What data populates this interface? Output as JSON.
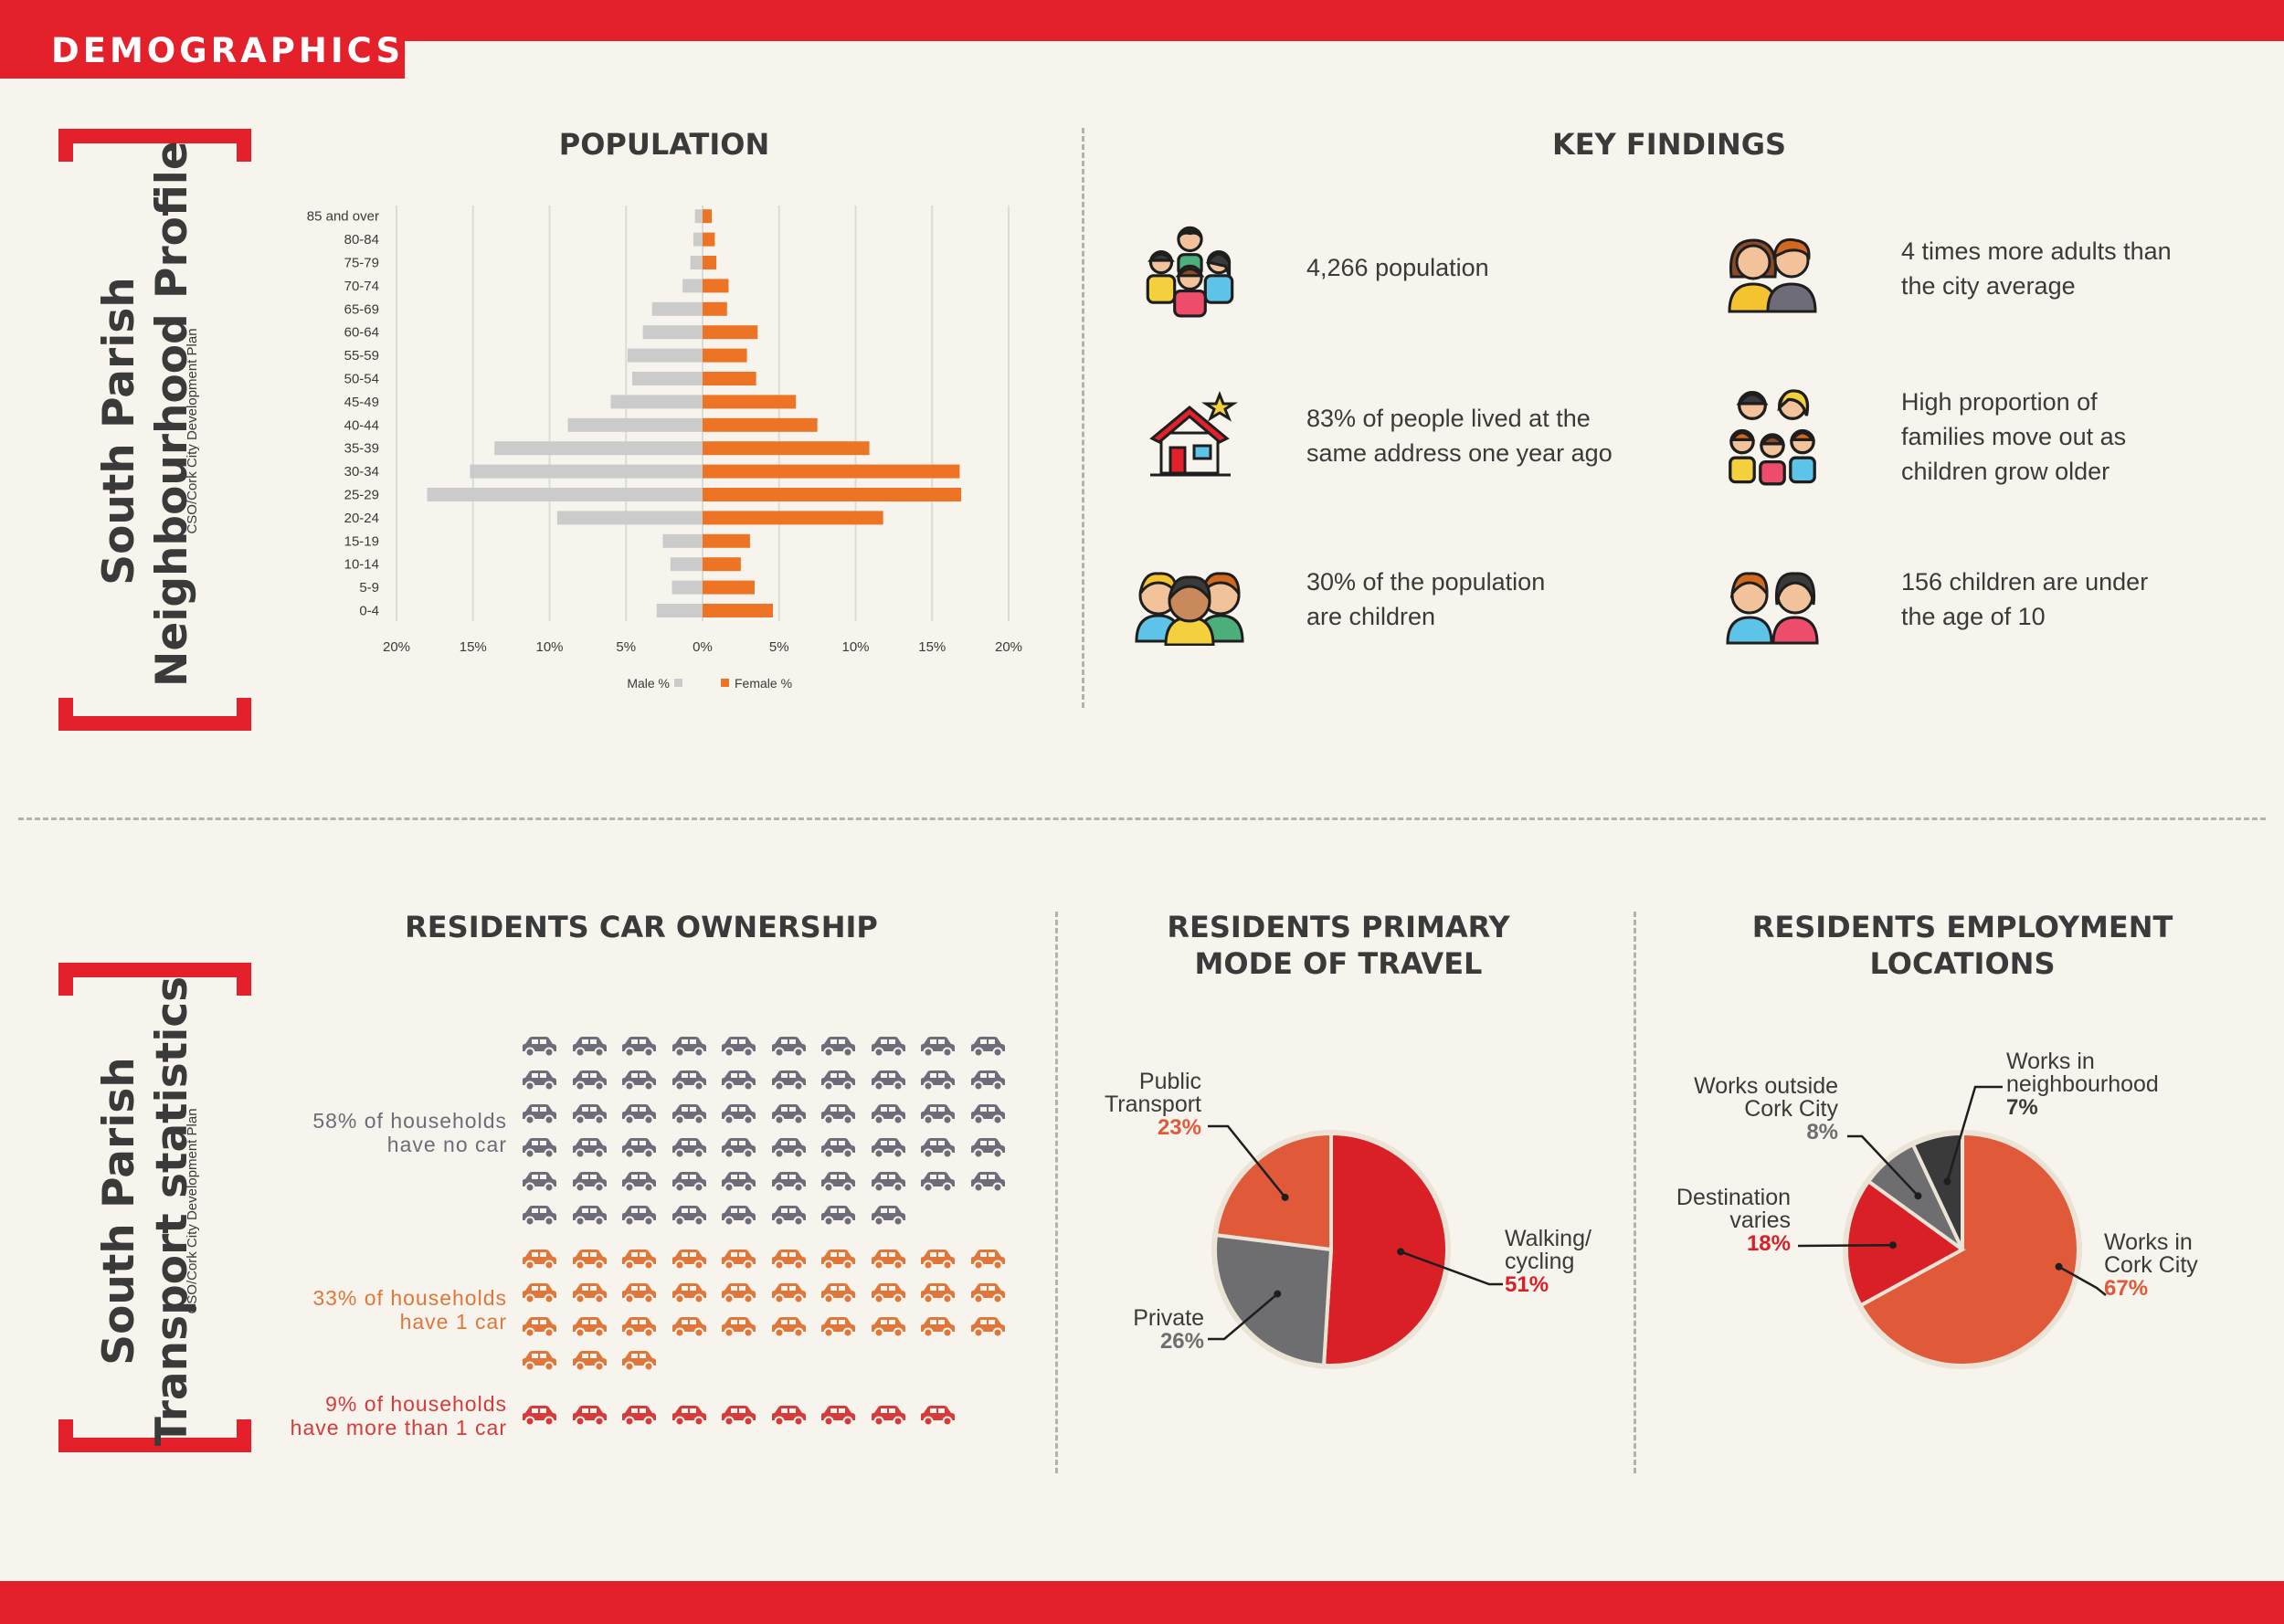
{
  "header": {
    "tag": "DEMOGRAPHICS"
  },
  "colors": {
    "accent": "#e4202b",
    "male": "#cbcbcb",
    "female": "#ee7425",
    "no_car": "#6d6c78",
    "one_car": "#e1763a",
    "multi_car": "#d63a3a",
    "pie_red": "#d92027",
    "pie_orange": "#e05a3a",
    "pie_grey": "#6e6e70",
    "pie_dark": "#3a3a3a"
  },
  "profile": {
    "title_line1": "South Parish",
    "title_line2": "Neighbourhood Profile",
    "source": "CSO/Cork City Development Plan"
  },
  "transport": {
    "title_line1": "South Parish",
    "title_line2": "Transport statistics",
    "source": "CSO/Cork City Development Plan"
  },
  "population_title": "POPULATION",
  "key_findings": {
    "title": "KEY FINDINGS",
    "items": [
      {
        "icon": "family-group-icon",
        "line1": "4,266 population",
        "line2": ""
      },
      {
        "icon": "couple-icon",
        "line1": "4 times more adults than",
        "line2": "the city average"
      },
      {
        "icon": "house-icon",
        "line1": "83% of people lived at the",
        "line2": "same address one year ago"
      },
      {
        "icon": "big-family-icon",
        "line1": "High proportion of",
        "line2": "families move out as",
        "line3": "children grow older"
      },
      {
        "icon": "children-group-icon",
        "line1": "30% of the population",
        "line2": "are children"
      },
      {
        "icon": "two-children-icon",
        "line1": "156 children are under",
        "line2": "the age of 10"
      }
    ]
  },
  "car_ownership": {
    "title": "RESIDENTS CAR OWNERSHIP",
    "groups": [
      {
        "line1": "58% of households",
        "line2": "have no car",
        "count": 58
      },
      {
        "line1": "33% of households",
        "line2": "have 1 car",
        "count": 33
      },
      {
        "line1": "9% of households",
        "line2": "have more than 1 car",
        "count": 9
      }
    ]
  },
  "travel": {
    "title_line1": "RESIDENTS PRIMARY",
    "title_line2": "MODE OF TRAVEL"
  },
  "employment": {
    "title_line1": "RESIDENTS EMPLOYMENT",
    "title_line2": "LOCATIONS"
  },
  "chart_data": [
    {
      "type": "bar",
      "orientation": "horizontal",
      "title": "POPULATION",
      "categories": [
        "85 and over",
        "80-84",
        "75-79",
        "70-74",
        "65-69",
        "60-64",
        "55-59",
        "50-54",
        "45-49",
        "40-44",
        "35-39",
        "30-34",
        "25-29",
        "20-24",
        "15-19",
        "10-14",
        "5-9",
        "0-4"
      ],
      "series": [
        {
          "name": "Male %",
          "values": [
            0.5,
            0.6,
            0.8,
            1.3,
            3.3,
            3.9,
            4.9,
            4.6,
            6.0,
            8.8,
            13.6,
            15.2,
            18.0,
            9.5,
            2.6,
            2.1,
            2.0,
            3.0
          ]
        },
        {
          "name": "Female %",
          "values": [
            0.6,
            0.8,
            0.9,
            1.7,
            1.6,
            3.6,
            2.9,
            3.5,
            6.1,
            7.5,
            10.9,
            16.8,
            16.9,
            11.8,
            3.1,
            2.5,
            3.4,
            4.6
          ]
        }
      ],
      "xlim": [
        -20,
        20
      ],
      "xticks": [
        "20%",
        "15%",
        "10%",
        "5%",
        "0%",
        "5%",
        "10%",
        "15%",
        "20%"
      ],
      "legend": [
        "Male %",
        "Female %"
      ]
    },
    {
      "type": "pie",
      "title": "RESIDENTS PRIMARY MODE OF TRAVEL",
      "slices": [
        {
          "label_line1": "Walking/",
          "label_line2": "cycling",
          "value": 51,
          "pct": "51%"
        },
        {
          "label_line1": "Private",
          "label_line2": "",
          "value": 26,
          "pct": "26%"
        },
        {
          "label_line1": "Public",
          "label_line2": "Transport",
          "value": 23,
          "pct": "23%"
        }
      ]
    },
    {
      "type": "pie",
      "title": "RESIDENTS EMPLOYMENT LOCATIONS",
      "slices": [
        {
          "label_line1": "Works in",
          "label_line2": "Cork City",
          "value": 67,
          "pct": "67%"
        },
        {
          "label_line1": "Destination",
          "label_line2": "varies",
          "value": 18,
          "pct": "18%"
        },
        {
          "label_line1": "Works outside",
          "label_line2": "Cork City",
          "value": 8,
          "pct": "8%"
        },
        {
          "label_line1": "Works in",
          "label_line2": "neighbourhood",
          "value": 7,
          "pct": "7%"
        }
      ]
    }
  ]
}
